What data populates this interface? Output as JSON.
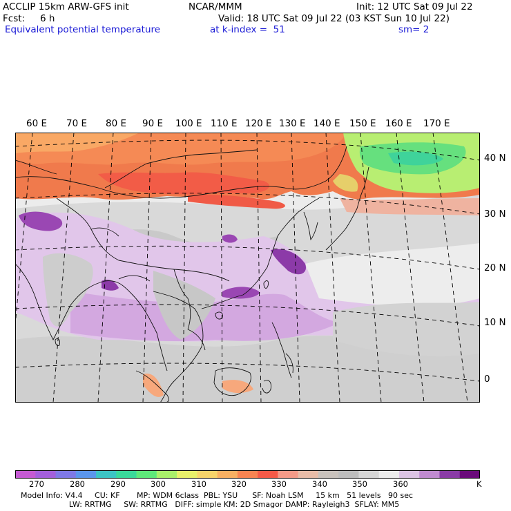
{
  "header": {
    "model": "ACCLIP 15km ARW-GFS init",
    "org": "NCAR/MMM",
    "init": "Init: 12 UTC Sat 09 Jul 22",
    "fcst_label": "Fcst:",
    "fcst_value": "6 h",
    "valid": "Valid: 18 UTC Sat 09 Jul 22 (03 KST Sun 10 Jul 22)",
    "field": "Equivalent potential temperature",
    "kindex": "at k-index =  51",
    "smooth": "sm= 2"
  },
  "map": {
    "lon_labels": [
      "60 E",
      "70 E",
      "80 E",
      "90 E",
      "100 E",
      "110 E",
      "120 E",
      "130 E",
      "140 E",
      "150 E",
      "160 E",
      "170 E"
    ],
    "lat_labels": [
      "40 N",
      "30 N",
      "20 N",
      "10 N",
      "0"
    ]
  },
  "colorbar": {
    "colors": [
      "#c55ad3",
      "#a45fdc",
      "#7f79e6",
      "#5b96ec",
      "#3cc4c4",
      "#3ad99a",
      "#5ee87a",
      "#a9f06a",
      "#e8f06a",
      "#f7d46a",
      "#f8b062",
      "#f88452",
      "#f45a48",
      "#f49a88",
      "#e8bca8",
      "#c9c2bc",
      "#bdbdbd",
      "#d6d6d6",
      "#ececec",
      "#dcc4e4",
      "#c08bd0",
      "#8a3ca6",
      "#6a0a7a"
    ],
    "labels": [
      "270",
      "280",
      "290",
      "300",
      "310",
      "320",
      "330",
      "340",
      "350",
      "360"
    ],
    "unit": "K"
  },
  "footer": {
    "line1": "Model Info: V4.4     CU: KF       MP: WDM 6class  PBL: YSU      SF: Noah LSM     15 km   51 levels   90 sec",
    "line2": "                    LW: RRTMG     SW: RRTMG   DIFF: simple KM: 2D Smagor DAMP: Rayleigh3  SFLAY: MM5"
  }
}
